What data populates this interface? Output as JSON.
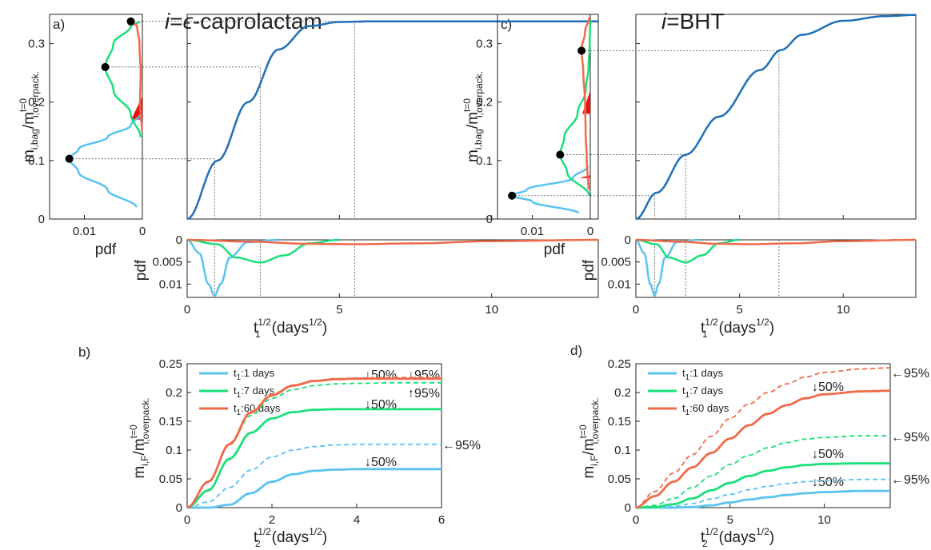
{
  "colors": {
    "t1_1": "#59c3f0",
    "t1_7": "#19e07a",
    "t1_60": "#f06a4a",
    "fill_red": "#ee1111",
    "curve_blue": "#1f6fb8",
    "dot": "#000000",
    "guide": "#555555"
  },
  "panel_labels": {
    "a": "a)",
    "b": "b)",
    "c": "c)",
    "d": "d)"
  },
  "titles": {
    "left": {
      "prefix": "i",
      "eq": "=",
      "eps": "ϵ",
      "name": "-caprolactam"
    },
    "right": {
      "prefix": "i",
      "eq": "=",
      "name": "BHT"
    }
  },
  "axis_text": {
    "m_bag": {
      "main": "m",
      "sub1": "i,bag",
      "slash": "/m",
      "sup": "t=0",
      "sub2": "i,overpack."
    },
    "m_F": {
      "main": "m",
      "sub1": "i,F",
      "slash": "/m",
      "sup": "t=0",
      "sub2": "i,overpack."
    },
    "pdf": "pdf",
    "t1": {
      "main": "t",
      "sup": "1/2",
      "sub": "1",
      "units": "(days",
      "units_sup": "1/2",
      "close": ")"
    },
    "t2": {
      "main": "t",
      "sup": "1/2",
      "sub": "2",
      "units": "(days",
      "units_sup": "1/2",
      "close": ")"
    }
  },
  "ticks": {
    "mass_y": [
      "0",
      "0.1",
      "0.2",
      "0.3"
    ],
    "side_pdf_x": [
      "0.01",
      "0"
    ],
    "pdf_y": [
      "0",
      "0.005",
      "0.01"
    ],
    "t1_x": [
      "0",
      "5",
      "10"
    ],
    "mF_y": [
      "0",
      "0.05",
      "0.1",
      "0.15",
      "0.2",
      "0.25"
    ],
    "t2_left_x": [
      "0",
      "2",
      "4",
      "6"
    ],
    "t2_right_x": [
      "0",
      "5",
      "10"
    ]
  },
  "legend": {
    "t1_1": {
      "main": "t",
      "sub": "1",
      "rest": ":1 days"
    },
    "t1_7": {
      "main": "t",
      "sub": "1",
      "rest": ":7 days"
    },
    "t1_60": {
      "main": "t",
      "sub": "1",
      "rest": ":60 days"
    }
  },
  "annotations": {
    "b": {
      "red50": "↓50%",
      "red95": "↓95%",
      "green50": "↓50%",
      "green95": "↑95%",
      "blue95": "←95%",
      "blue50": "↓50%"
    },
    "d": {
      "red95": "←95%",
      "red50": "↓50%",
      "green95": "←95%",
      "green50": "↓50%",
      "blue95": "←95%",
      "blue50": "↓50%"
    }
  },
  "chart_data": [
    {
      "panel": "a",
      "type": "line",
      "xlabel": "t1^1/2 (days^1/2)",
      "ylabel": "m_i,bag / m_i,overpack.^t=0",
      "xlim": [
        0,
        13.5
      ],
      "ylim": [
        0,
        0.35
      ],
      "series": [
        {
          "x": [
            0,
            1,
            2,
            3,
            4,
            5,
            6,
            8,
            10,
            13.5
          ],
          "y": [
            0,
            0.1,
            0.2,
            0.29,
            0.33,
            0.337,
            0.338,
            0.338,
            0.338,
            0.338
          ]
        }
      ],
      "guides": [
        {
          "x": 0.9,
          "y": 0.103
        },
        {
          "x": 2.4,
          "y": 0.26
        },
        {
          "x": 5.5,
          "y": 0.338
        }
      ],
      "side_pdf": {
        "xlabel": "pdf",
        "xlim": [
          0.016,
          0
        ],
        "blue": {
          "y": [
            0.02,
            0.05,
            0.08,
            0.103,
            0.12,
            0.14,
            0.16,
            0.18
          ],
          "pdf": [
            0.001,
            0.006,
            0.011,
            0.0126,
            0.011,
            0.006,
            0.002,
            0.0003
          ]
        },
        "green": {
          "y": [
            0.14,
            0.18,
            0.22,
            0.26,
            0.3,
            0.33,
            0.338
          ],
          "pdf": [
            0.0003,
            0.002,
            0.005,
            0.0064,
            0.005,
            0.002,
            0.0005
          ]
        },
        "red": {
          "y": [
            0.15,
            0.2,
            0.25,
            0.3,
            0.33,
            0.338
          ],
          "pdf": [
            0.0001,
            0.0004,
            0.0003,
            0.0005,
            0.0009,
            0.0022
          ]
        },
        "dots": [
          {
            "y": 0.103,
            "pdf": 0.0126
          },
          {
            "y": 0.26,
            "pdf": 0.0064
          },
          {
            "y": 0.338,
            "pdf": 0.002
          }
        ]
      },
      "bottom_pdf": {
        "ylabel": "pdf",
        "ylim": [
          0,
          0.013
        ],
        "blue": {
          "x": [
            0,
            0.4,
            0.7,
            0.9,
            1.1,
            1.4,
            2,
            3
          ],
          "pdf": [
            0,
            0.003,
            0.01,
            0.0126,
            0.01,
            0.004,
            0.0005,
            0
          ]
        },
        "green": {
          "x": [
            0,
            1,
            1.6,
            2.4,
            3.2,
            4,
            5
          ],
          "pdf": [
            0,
            0.001,
            0.004,
            0.0051,
            0.0035,
            0.0008,
            0
          ]
        },
        "red": {
          "x": [
            0,
            2,
            4,
            5.5,
            7.5,
            10,
            13.5
          ],
          "pdf": [
            0,
            0.0004,
            0.0009,
            0.001,
            0.0008,
            0.0003,
            0
          ]
        }
      }
    },
    {
      "panel": "c",
      "type": "line",
      "xlabel": "t1^1/2 (days^1/2)",
      "ylabel": "m_i,bag / m_i,overpack.^t=0",
      "xlim": [
        0,
        13.5
      ],
      "ylim": [
        0,
        0.35
      ],
      "series": [
        {
          "x": [
            0,
            1,
            2.4,
            4,
            6,
            7,
            8,
            10,
            12,
            13.5
          ],
          "y": [
            0,
            0.045,
            0.11,
            0.175,
            0.255,
            0.289,
            0.315,
            0.339,
            0.347,
            0.349
          ]
        }
      ],
      "guides": [
        {
          "x": 0.9,
          "y": 0.04
        },
        {
          "x": 2.4,
          "y": 0.11
        },
        {
          "x": 6.9,
          "y": 0.288
        }
      ],
      "side_pdf": {
        "xlabel": "pdf",
        "xlim": [
          0.016,
          0
        ],
        "blue": {
          "y": [
            0.01,
            0.03,
            0.04,
            0.05,
            0.07,
            0.09
          ],
          "pdf": [
            0.002,
            0.01,
            0.0135,
            0.011,
            0.003,
            0.0004
          ]
        },
        "green": {
          "y": [
            0.04,
            0.08,
            0.11,
            0.14,
            0.18,
            0.22,
            0.26,
            0.3,
            0.34
          ],
          "pdf": [
            0.0002,
            0.004,
            0.0052,
            0.0045,
            0.0022,
            0.0008,
            0.0003,
            0.0001,
            0
          ]
        },
        "red": {
          "y": [
            0.05,
            0.1,
            0.15,
            0.2,
            0.25,
            0.29,
            0.32,
            0.345
          ],
          "pdf": [
            0.0003,
            0.0006,
            0.0008,
            0.0009,
            0.0012,
            0.0015,
            0.0009,
            0.0002
          ]
        },
        "dots": [
          {
            "y": 0.04,
            "pdf": 0.0135
          },
          {
            "y": 0.11,
            "pdf": 0.0052
          },
          {
            "y": 0.288,
            "pdf": 0.0015
          }
        ]
      },
      "bottom_pdf": {
        "ylabel": "pdf",
        "ylim": [
          0,
          0.013
        ],
        "blue": {
          "x": [
            0,
            0.4,
            0.7,
            0.9,
            1.1,
            1.4,
            2,
            3
          ],
          "pdf": [
            0,
            0.003,
            0.01,
            0.0126,
            0.01,
            0.004,
            0.0005,
            0
          ]
        },
        "green": {
          "x": [
            0,
            1,
            1.6,
            2.4,
            3.2,
            4,
            5
          ],
          "pdf": [
            0,
            0.001,
            0.004,
            0.0051,
            0.0035,
            0.0008,
            0
          ]
        },
        "red": {
          "x": [
            0,
            2,
            4,
            5.5,
            7.5,
            10,
            13.5
          ],
          "pdf": [
            0,
            0.0004,
            0.0009,
            0.001,
            0.0008,
            0.0003,
            0
          ]
        }
      }
    },
    {
      "panel": "b",
      "type": "line",
      "xlabel": "t2^1/2 (days^1/2)",
      "ylabel": "m_i,F / m_i,overpack.^t=0",
      "xlim": [
        0,
        6
      ],
      "ylim": [
        0,
        0.25
      ],
      "series": [
        {
          "name": "t1:1 days",
          "style": "solid",
          "x": [
            0,
            0.5,
            1,
            1.5,
            2,
            2.5,
            3,
            3.5,
            4,
            4.5,
            5,
            6
          ],
          "y": [
            0,
            0,
            0.005,
            0.025,
            0.045,
            0.058,
            0.064,
            0.066,
            0.067,
            0.067,
            0.067,
            0.067
          ]
        },
        {
          "name": "t1:1 days",
          "style": "dashed",
          "x": [
            0,
            0.5,
            1,
            1.5,
            2,
            2.5,
            3,
            3.5,
            4,
            5,
            6
          ],
          "y": [
            0,
            0.01,
            0.035,
            0.065,
            0.088,
            0.1,
            0.106,
            0.109,
            0.11,
            0.11,
            0.11
          ]
        },
        {
          "name": "t1:7 days",
          "style": "solid",
          "x": [
            0,
            0.5,
            1,
            1.5,
            2,
            2.5,
            3,
            3.5,
            4,
            5,
            6
          ],
          "y": [
            0,
            0.03,
            0.085,
            0.13,
            0.155,
            0.166,
            0.17,
            0.171,
            0.171,
            0.171,
            0.171
          ]
        },
        {
          "name": "t1:7 days",
          "style": "dashed",
          "x": [
            0,
            0.5,
            1,
            1.5,
            2,
            2.5,
            3,
            3.5,
            4,
            5,
            6
          ],
          "y": [
            0,
            0.045,
            0.11,
            0.16,
            0.19,
            0.205,
            0.212,
            0.215,
            0.216,
            0.217,
            0.217
          ]
        },
        {
          "name": "t1:60 days",
          "style": "solid",
          "x": [
            0,
            0.5,
            1,
            1.5,
            2,
            2.5,
            3,
            3.5,
            4,
            5,
            6
          ],
          "y": [
            0,
            0.045,
            0.11,
            0.165,
            0.195,
            0.212,
            0.22,
            0.223,
            0.224,
            0.224,
            0.224
          ]
        },
        {
          "name": "t1:60 days",
          "style": "dashed",
          "x": [
            0,
            0.5,
            1,
            1.5,
            2,
            2.5,
            3,
            3.5,
            4,
            5,
            6
          ],
          "y": [
            0,
            0.046,
            0.112,
            0.167,
            0.197,
            0.213,
            0.221,
            0.224,
            0.225,
            0.226,
            0.226
          ]
        }
      ]
    },
    {
      "panel": "d",
      "type": "line",
      "xlabel": "t2^1/2 (days^1/2)",
      "ylabel": "m_i,F / m_i,overpack.^t=0",
      "xlim": [
        0,
        13.5
      ],
      "ylim": [
        0,
        0.25
      ],
      "series": [
        {
          "name": "t1:1 days",
          "style": "solid",
          "x": [
            0,
            2,
            3,
            4,
            5,
            6,
            7,
            8,
            9,
            10,
            12,
            13.5
          ],
          "y": [
            0,
            0,
            0.001,
            0.004,
            0.009,
            0.014,
            0.018,
            0.022,
            0.025,
            0.027,
            0.029,
            0.029
          ]
        },
        {
          "name": "t1:1 days",
          "style": "dashed",
          "x": [
            0,
            1,
            2,
            3,
            4,
            5,
            6,
            7,
            8,
            9,
            10,
            12,
            13.5
          ],
          "y": [
            0,
            0,
            0.002,
            0.007,
            0.015,
            0.023,
            0.031,
            0.037,
            0.042,
            0.045,
            0.047,
            0.049,
            0.049
          ]
        },
        {
          "name": "t1:7 days",
          "style": "solid",
          "x": [
            0,
            1,
            2,
            3,
            4,
            5,
            6,
            7,
            8,
            9,
            10,
            12,
            13.5
          ],
          "y": [
            0,
            0.001,
            0.006,
            0.016,
            0.03,
            0.043,
            0.055,
            0.064,
            0.07,
            0.074,
            0.076,
            0.077,
            0.077
          ]
        },
        {
          "name": "t1:7 days",
          "style": "dashed",
          "x": [
            0,
            1,
            2,
            3,
            4,
            5,
            6,
            7,
            8,
            9,
            10,
            12,
            13.5
          ],
          "y": [
            0,
            0.004,
            0.016,
            0.035,
            0.055,
            0.075,
            0.091,
            0.104,
            0.113,
            0.119,
            0.122,
            0.125,
            0.125
          ]
        },
        {
          "name": "t1:60 days",
          "style": "solid",
          "x": [
            0,
            1,
            2,
            3,
            4,
            5,
            6,
            7,
            8,
            9,
            10,
            12,
            13.5
          ],
          "y": [
            0,
            0.02,
            0.045,
            0.07,
            0.095,
            0.12,
            0.143,
            0.163,
            0.178,
            0.19,
            0.197,
            0.202,
            0.203
          ]
        },
        {
          "name": "t1:60 days",
          "style": "dashed",
          "x": [
            0,
            1,
            2,
            3,
            4,
            5,
            6,
            7,
            8,
            9,
            10,
            12,
            13.5
          ],
          "y": [
            0,
            0.028,
            0.06,
            0.092,
            0.124,
            0.155,
            0.18,
            0.2,
            0.215,
            0.227,
            0.235,
            0.241,
            0.243
          ]
        }
      ]
    }
  ]
}
